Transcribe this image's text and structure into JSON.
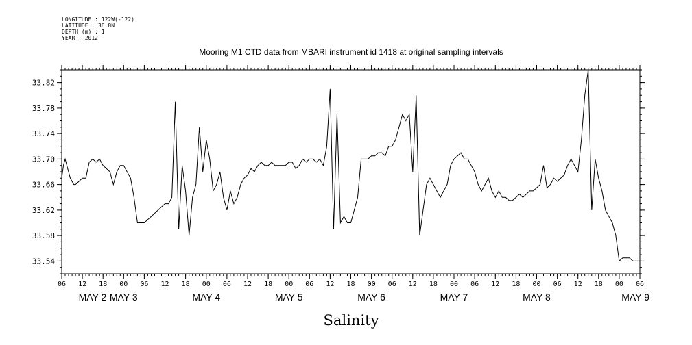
{
  "header": {
    "longitude": "LONGITUDE : 122W(-122)",
    "latitude": "LATITUDE : 36.8N",
    "depth": "DEPTH (m) : 1",
    "year": "YEAR : 2012"
  },
  "chart_data": {
    "type": "line",
    "title": "Mooring M1 CTD data from MBARI instrument id 1418 at original sampling intervals",
    "xlabel": "Salinity",
    "ylabel": "",
    "x_start": "2012-05-02T06:00",
    "x_end": "2012-05-09T06:00",
    "xlim_hours": [
      0,
      168
    ],
    "ylim": [
      33.52,
      33.84
    ],
    "y_ticks": [
      "33.54",
      "33.58",
      "33.62",
      "33.66",
      "33.70",
      "33.74",
      "33.78",
      "33.82"
    ],
    "x_tick_labels": [
      "06",
      "12",
      "18",
      "00",
      "06",
      "12",
      "18",
      "00",
      "06",
      "12",
      "18",
      "00",
      "06",
      "12",
      "18",
      "00",
      "06",
      "12",
      "18",
      "00",
      "06",
      "12",
      "18",
      "00",
      "06",
      "12",
      "18",
      "00",
      "06"
    ],
    "day_labels": [
      "MAY  2",
      "MAY  3",
      "MAY  4",
      "MAY  5",
      "MAY  6",
      "MAY  7",
      "MAY  8",
      "MAY  9"
    ],
    "grid": false,
    "line_color": "#000000",
    "series": [
      {
        "x": [
          0,
          0.5,
          1,
          1.5,
          2,
          2.5,
          3,
          3.5,
          4,
          5,
          6,
          7,
          8,
          9,
          10,
          11,
          12,
          13,
          14,
          15,
          16,
          17,
          18,
          19,
          20,
          21,
          22,
          23,
          24,
          25,
          26,
          27,
          28,
          29,
          30,
          31,
          32,
          33,
          34,
          35,
          36,
          37,
          38,
          39,
          40,
          41,
          42,
          43,
          44,
          45,
          46,
          47,
          48,
          49,
          50,
          51,
          52,
          53,
          54,
          55,
          56,
          57,
          58,
          59,
          60,
          61,
          62,
          63,
          64,
          65,
          66,
          67,
          68,
          69,
          70,
          71,
          72,
          73,
          74,
          75,
          76,
          77,
          78,
          79,
          80,
          81,
          82,
          83,
          84,
          85,
          86,
          87,
          88,
          89,
          90,
          91,
          92,
          93,
          94,
          95,
          96,
          97,
          98,
          99,
          100,
          101,
          102,
          103,
          104,
          105,
          106,
          107,
          108,
          109,
          110,
          111,
          112,
          113,
          114,
          115,
          116,
          117,
          118,
          119,
          120,
          121,
          122,
          123,
          124,
          125,
          126,
          127,
          128,
          129,
          130,
          131,
          132,
          133,
          134,
          135,
          136,
          137,
          138,
          139,
          140,
          141,
          142,
          143,
          144,
          145,
          146,
          147,
          148,
          149,
          150,
          151,
          152,
          153,
          154,
          155,
          156,
          157,
          158,
          159,
          160,
          161,
          162,
          163,
          164,
          165,
          166,
          167,
          168
        ],
        "y": [
          33.67,
          33.69,
          33.7,
          33.69,
          33.68,
          33.67,
          33.665,
          33.66,
          33.66,
          33.665,
          33.67,
          33.67,
          33.695,
          33.7,
          33.695,
          33.7,
          33.69,
          33.685,
          33.68,
          33.66,
          33.68,
          33.69,
          33.69,
          33.68,
          33.67,
          33.64,
          33.6,
          33.6,
          33.6,
          33.605,
          33.61,
          33.615,
          33.62,
          33.625,
          33.63,
          33.63,
          33.64,
          33.79,
          33.59,
          33.69,
          33.65,
          33.58,
          33.64,
          33.66,
          33.75,
          33.68,
          33.73,
          33.7,
          33.65,
          33.66,
          33.68,
          33.64,
          33.62,
          33.65,
          33.63,
          33.64,
          33.66,
          33.67,
          33.675,
          33.685,
          33.68,
          33.69,
          33.695,
          33.69,
          33.69,
          33.695,
          33.69,
          33.69,
          33.69,
          33.69,
          33.695,
          33.695,
          33.685,
          33.69,
          33.7,
          33.695,
          33.7,
          33.7,
          33.695,
          33.7,
          33.69,
          33.72,
          33.81,
          33.59,
          33.77,
          33.6,
          33.61,
          33.6,
          33.6,
          33.62,
          33.64,
          33.7,
          33.7,
          33.7,
          33.705,
          33.705,
          33.71,
          33.71,
          33.705,
          33.72,
          33.72,
          33.73,
          33.75,
          33.77,
          33.76,
          33.77,
          33.68,
          33.8,
          33.58,
          33.62,
          33.66,
          33.67,
          33.66,
          33.65,
          33.64,
          33.65,
          33.66,
          33.69,
          33.7,
          33.705,
          33.71,
          33.7,
          33.7,
          33.69,
          33.68,
          33.66,
          33.65,
          33.66,
          33.67,
          33.65,
          33.64,
          33.65,
          33.64,
          33.64,
          33.635,
          33.635,
          33.64,
          33.645,
          33.64,
          33.645,
          33.65,
          33.65,
          33.655,
          33.66,
          33.69,
          33.655,
          33.66,
          33.67,
          33.665,
          33.67,
          33.675,
          33.69,
          33.7,
          33.69,
          33.68,
          33.73,
          33.8,
          33.84,
          33.62,
          33.7,
          33.67,
          33.65,
          33.62,
          33.61,
          33.6,
          33.58,
          33.54,
          33.545,
          33.545,
          33.545,
          33.54,
          33.54,
          33.54
        ]
      }
    ]
  }
}
